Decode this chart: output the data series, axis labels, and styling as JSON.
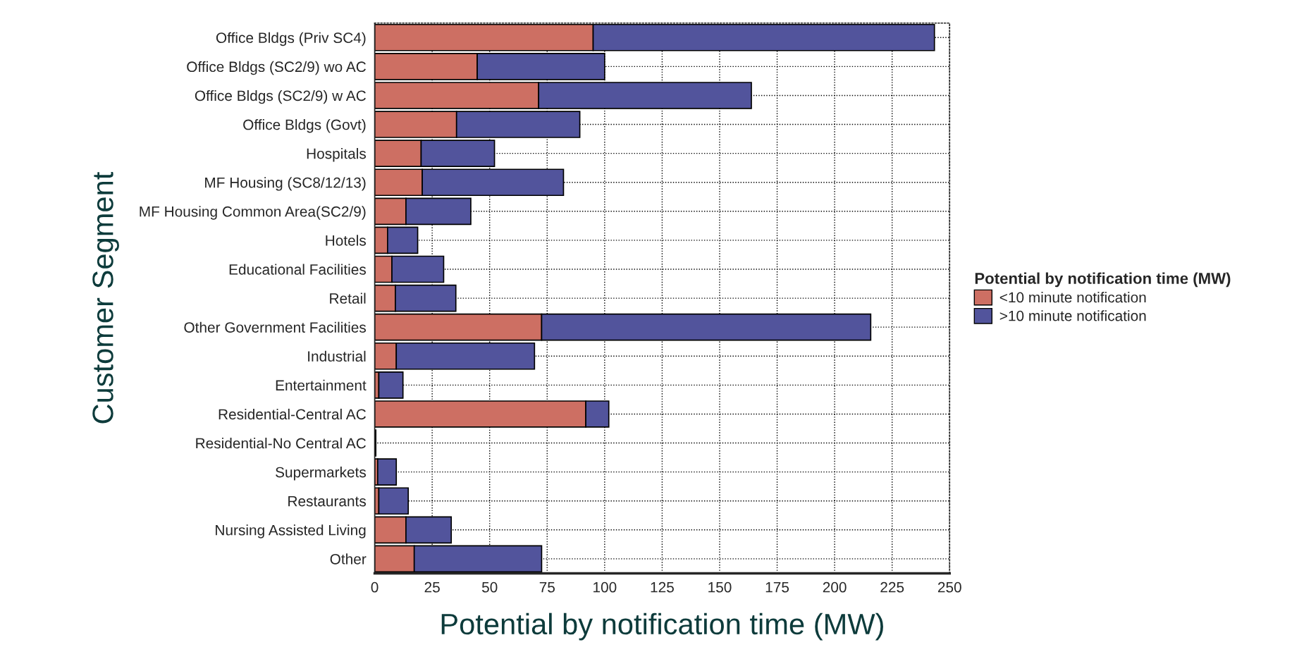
{
  "chart_data": {
    "type": "bar",
    "orientation": "horizontal",
    "stacked": true,
    "xlabel": "Potential by notification time (MW)",
    "ylabel": "Customer Segment",
    "legend_title": "Potential by notification time (MW)",
    "categories": [
      "Office Bldgs (Priv SC4)",
      "Office Bldgs (SC2/9) wo AC",
      "Office Bldgs (SC2/9) w AC",
      "Office Bldgs (Govt)",
      "Hospitals",
      "MF Housing (SC8/12/13)",
      "MF Housing Common Area(SC2/9)",
      "Hotels",
      "Educational Facilities",
      "Retail",
      "Other Government Facilities",
      "Industrial",
      "Entertainment",
      "Residential-Central AC",
      "Residential-No Central AC",
      "Supermarkets",
      "Restaurants",
      "Nursing Assisted Living",
      "Other"
    ],
    "series": [
      {
        "name": "<10 minute notification",
        "color": "#cd6f63",
        "values": [
          95,
          44.6,
          71.3,
          35.6,
          20.2,
          20.7,
          13.6,
          5.6,
          7.5,
          9.0,
          72.6,
          9.4,
          1.8,
          91.8,
          0,
          1.3,
          1.8,
          13.6,
          17.2
        ]
      },
      {
        "name": ">10 minute notification",
        "color": "#52549c",
        "values": [
          148.4,
          55.4,
          92.5,
          53.6,
          31.9,
          61.4,
          28.2,
          13.1,
          22.5,
          26.3,
          143.1,
          60.1,
          10.5,
          10,
          0.5,
          8.1,
          12.8,
          19.7,
          55.4
        ]
      }
    ],
    "xlim": [
      0,
      250
    ],
    "xticks": [
      0,
      25,
      50,
      75,
      100,
      125,
      150,
      175,
      200,
      225,
      250
    ],
    "grid": true,
    "legend": "right"
  }
}
